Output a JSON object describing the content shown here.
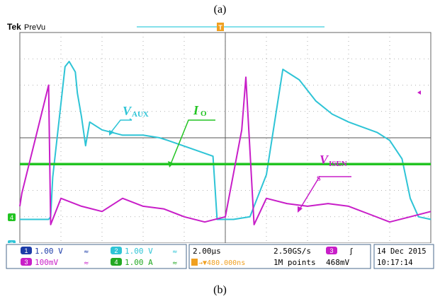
{
  "captions": {
    "top": "(a)",
    "bottom": "(b)"
  },
  "scope": {
    "brand": "Tek",
    "mode": "PreVu",
    "trigger_marker": "T",
    "level_marker": "T",
    "ch4_marker": "4",
    "ch2_marker": "2"
  },
  "status": {
    "ch1": {
      "num": "1",
      "scale": "1.00 V",
      "coupling": "≈"
    },
    "ch2": {
      "num": "2",
      "scale": "1.00 V",
      "coupling": "≈"
    },
    "ch3": {
      "num": "3",
      "scale": "100mV",
      "coupling": "≈"
    },
    "ch4": {
      "num": "4",
      "scale": "1.00 A",
      "coupling": "≈"
    },
    "timebase": "2.00µs",
    "sample_rate": "2.50GS/s",
    "delay": "→▼480.000ns",
    "record_length": "1M points",
    "trig_channel": "3",
    "trig_slope": "ʃ",
    "trig_level": "468mV",
    "date": "14 Dec 2015",
    "time": "10:17:14"
  },
  "annotations": {
    "vaux": {
      "main": "V",
      "sub": "AUX"
    },
    "io": {
      "main": "I",
      "sub": "O"
    },
    "visens": {
      "main": "V",
      "sub": "ISEN",
      "sub2": "S"
    }
  },
  "colors": {
    "cyan": "#2ec4d6",
    "magenta": "#c81ec8",
    "green": "#22c422",
    "grid": "#9a9a9a",
    "frame": "#4a6a8c"
  },
  "chart_data": {
    "type": "line",
    "title": "",
    "xlabel": "",
    "ylabel": "",
    "x_divisions": 10,
    "y_divisions": 8,
    "grid": true,
    "series": [
      {
        "name": "V_AUX",
        "color": "#2ec4d6",
        "x": [
          0.0,
          0.7,
          0.75,
          0.8,
          1.1,
          1.2,
          1.35,
          1.4,
          1.5,
          1.6,
          1.7,
          2.0,
          2.5,
          3.0,
          3.4,
          3.6,
          4.7,
          4.8,
          5.2,
          5.6,
          6.0,
          6.4,
          6.8,
          7.2,
          7.6,
          8.0,
          8.7,
          9.0,
          9.3,
          9.5,
          9.7,
          10.0
        ],
        "y": [
          -3.1,
          -3.1,
          -3.0,
          -1.5,
          2.7,
          2.9,
          2.5,
          1.7,
          0.8,
          -0.3,
          0.6,
          0.3,
          0.1,
          0.1,
          0.0,
          -0.1,
          -0.7,
          -3.1,
          -3.1,
          -3.0,
          -1.4,
          2.6,
          2.2,
          1.4,
          0.9,
          0.6,
          0.2,
          -0.1,
          -0.8,
          -2.3,
          -3.0,
          -3.1
        ]
      },
      {
        "name": "I_O",
        "color": "#22c422",
        "x": [
          0,
          10
        ],
        "y": [
          -1.0,
          -1.0
        ]
      },
      {
        "name": "V_ISENS",
        "color": "#c81ec8",
        "x": [
          0.0,
          0.05,
          0.4,
          0.7,
          0.75,
          1.0,
          1.5,
          2.0,
          2.5,
          3.0,
          3.5,
          4.0,
          4.5,
          5.0,
          5.4,
          5.5,
          5.7,
          6.0,
          6.5,
          7.0,
          7.5,
          8.0,
          8.5,
          9.0,
          9.5,
          10.0
        ],
        "y": [
          -2.6,
          -2.1,
          0.1,
          2.0,
          -3.3,
          -2.3,
          -2.6,
          -2.8,
          -2.3,
          -2.6,
          -2.7,
          -3.0,
          -3.2,
          -3.0,
          0.3,
          2.3,
          -3.3,
          -2.3,
          -2.5,
          -2.6,
          -2.5,
          -2.6,
          -2.9,
          -3.2,
          -3.0,
          -2.8
        ]
      }
    ]
  }
}
